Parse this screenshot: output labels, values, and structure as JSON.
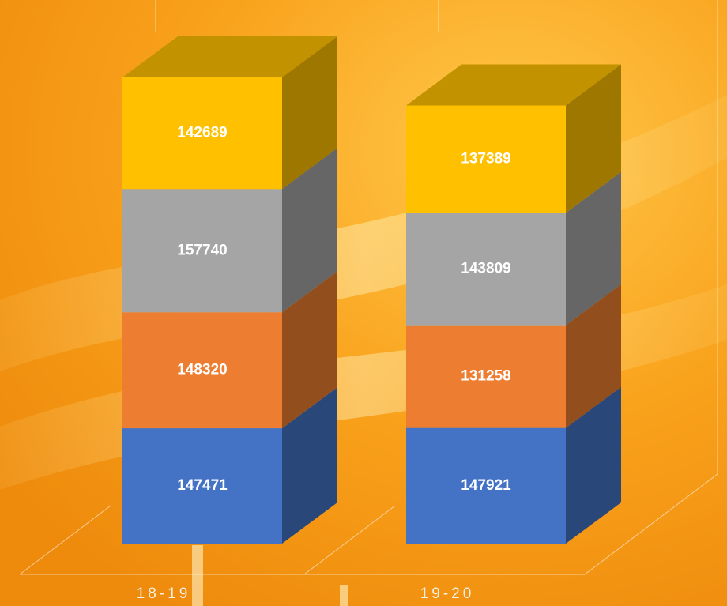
{
  "chart_data": {
    "type": "bar3d_stacked",
    "categories": [
      "18-19",
      "19-20"
    ],
    "series": [
      {
        "color": "#4472c4",
        "values": [
          147471,
          147921
        ]
      },
      {
        "color": "#ed7d31",
        "values": [
          148320,
          131258
        ]
      },
      {
        "color": "#a5a5a5",
        "values": [
          157740,
          143809
        ]
      },
      {
        "color": "#ffc000",
        "values": [
          142689,
          137389
        ]
      }
    ]
  }
}
